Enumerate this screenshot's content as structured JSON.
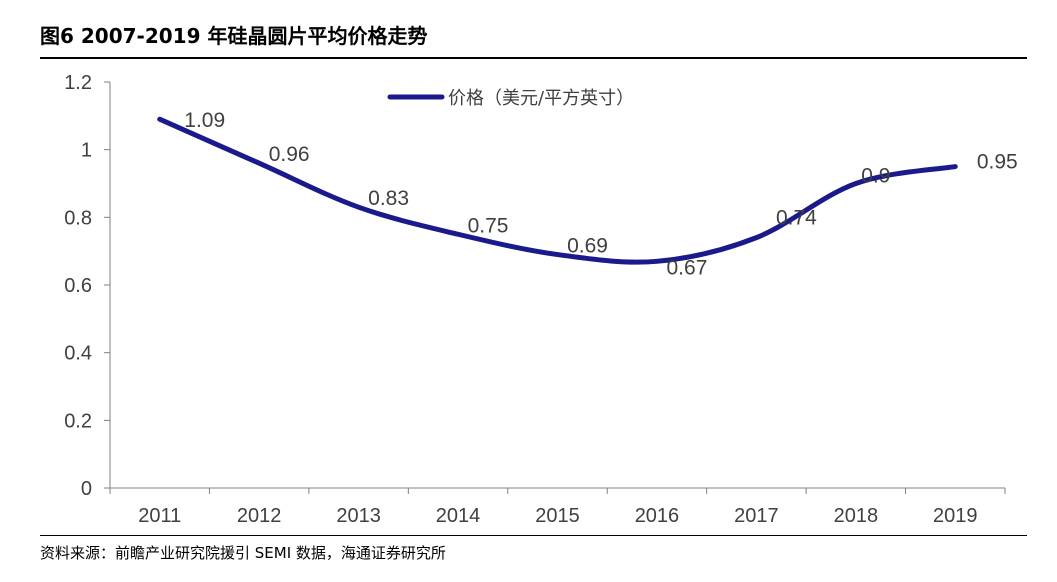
{
  "header": {
    "title": "图6 2007-2019 年硅晶圆片平均价格走势"
  },
  "footer": {
    "source": "资料来源：前瞻产业研究院援引 SEMI 数据，海通证券研究所"
  },
  "colors": {
    "line": "#1a1a8c",
    "axis": "#808080",
    "text": "#404040"
  },
  "chart_data": {
    "type": "line",
    "title": "",
    "xlabel": "",
    "ylabel": "",
    "categories": [
      "2011",
      "2012",
      "2013",
      "2014",
      "2015",
      "2016",
      "2017",
      "2018",
      "2019"
    ],
    "series": [
      {
        "name": "价格（美元/平方英寸）",
        "values": [
          1.09,
          0.96,
          0.83,
          0.75,
          0.69,
          0.67,
          0.74,
          0.9,
          0.95
        ],
        "labels": [
          "1.09",
          "0.96",
          "0.83",
          "0.75",
          "0.69",
          "0.67",
          "0.74",
          "0.9",
          "0.95"
        ]
      }
    ],
    "ylim": [
      0,
      1.2
    ],
    "yticks": [
      0,
      0.2,
      0.4,
      0.6,
      0.8,
      1,
      1.2
    ],
    "ytick_labels": [
      "0",
      "0.2",
      "0.4",
      "0.6",
      "0.8",
      "1",
      "1.2"
    ],
    "grid": false,
    "legend_position": "top-center",
    "smooth": true
  }
}
